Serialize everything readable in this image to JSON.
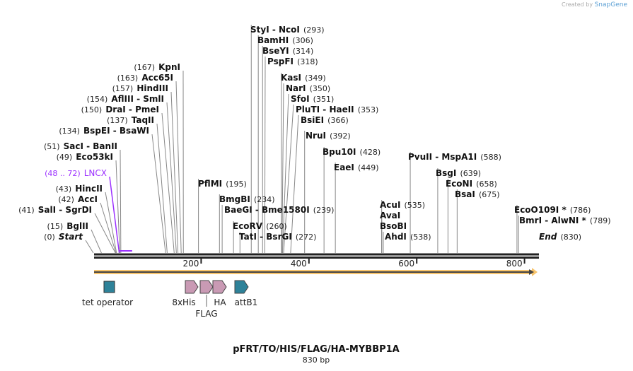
{
  "watermark": {
    "created_by": "Created by",
    "brand": "SnapGene"
  },
  "map": {
    "title": "pFRT/TO/HIS/FLAG/HA-MYBBP1A",
    "length_label": "830 bp",
    "length": 830,
    "ticks": [
      "200",
      "400",
      "600",
      "800"
    ],
    "tick_values": [
      200,
      400,
      600,
      800
    ]
  },
  "sites": [
    {
      "name": "Start",
      "pos": "(0)",
      "site": 0,
      "italic": true
    },
    {
      "name": "BglII",
      "pos": "(15)",
      "site": 15
    },
    {
      "name": "SalI  - SgrDI",
      "pos": "(41)",
      "site": 41
    },
    {
      "name": "AccI",
      "pos": "(42)",
      "site": 42
    },
    {
      "name": "HincII",
      "pos": "(43)",
      "site": 43
    },
    {
      "name": "LNCX",
      "pos": "(48 .. 72)",
      "site": 48,
      "color": "#9b30ff"
    },
    {
      "name": "Eco53kI",
      "pos": "(49)",
      "site": 49
    },
    {
      "name": "SacI  - BanII",
      "pos": "(51)",
      "site": 51
    },
    {
      "name": "BspEI  - BsaWI",
      "pos": "(134)",
      "site": 134
    },
    {
      "name": "TaqII",
      "pos": "(137)",
      "site": 137
    },
    {
      "name": "DraI  - PmeI",
      "pos": "(150)",
      "site": 150
    },
    {
      "name": "AflIII  - SmlI",
      "pos": "(154)",
      "site": 154
    },
    {
      "name": "HindIII",
      "pos": "(157)",
      "site": 157
    },
    {
      "name": "Acc65I",
      "pos": "(163)",
      "site": 163
    },
    {
      "name": "KpnI",
      "pos": "(167)",
      "site": 167
    },
    {
      "name": "PflMI",
      "pos": "(195)",
      "site": 195
    },
    {
      "name": "StyI  - NcoI",
      "pos": "(293)",
      "site": 293
    },
    {
      "name": "BamHI",
      "pos": "(306)",
      "site": 306
    },
    {
      "name": "BseYI",
      "pos": "(314)",
      "site": 314
    },
    {
      "name": "PspFI",
      "pos": "(318)",
      "site": 318
    },
    {
      "name": "KasI",
      "pos": "(349)",
      "site": 349
    },
    {
      "name": "NarI",
      "pos": "(350)",
      "site": 350
    },
    {
      "name": "SfoI",
      "pos": "(351)",
      "site": 351
    },
    {
      "name": "PluTI  - HaeII",
      "pos": "(353)",
      "site": 353
    },
    {
      "name": "BsiEI",
      "pos": "(366)",
      "site": 366
    },
    {
      "name": "NruI",
      "pos": "(392)",
      "site": 392
    },
    {
      "name": "Bpu10I",
      "pos": "(428)",
      "site": 428
    },
    {
      "name": "EaeI",
      "pos": "(449)",
      "site": 449
    },
    {
      "name": "BmgBI",
      "pos": "(234)",
      "site": 234
    },
    {
      "name": "BaeGI  - Bme1580I",
      "pos": "(239)",
      "site": 239
    },
    {
      "name": "EcoRV",
      "pos": "(260)",
      "site": 260
    },
    {
      "name": "TatI  - BsrGI",
      "pos": "(272)",
      "site": 272
    },
    {
      "name": "AcuI",
      "pos": "(535)",
      "site": 535
    },
    {
      "name": "AvaI",
      "pos": "",
      "site": 535
    },
    {
      "name": "BsoBI",
      "pos": "",
      "site": 535
    },
    {
      "name": "AhdI",
      "pos": "(538)",
      "site": 538
    },
    {
      "name": "PvuII  - MspA1I",
      "pos": "(588)",
      "site": 588
    },
    {
      "name": "BsgI",
      "pos": "(639)",
      "site": 639
    },
    {
      "name": "EcoNI",
      "pos": "(658)",
      "site": 658
    },
    {
      "name": "BsaI",
      "pos": "(675)",
      "site": 675
    },
    {
      "name": "EcoO109I *",
      "pos": "(786)",
      "site": 786
    },
    {
      "name": "BmrI  - AlwNI *",
      "pos": "(789)",
      "site": 789
    },
    {
      "name": "End",
      "pos": "(830)",
      "site": 830,
      "italic": true
    }
  ],
  "features": [
    {
      "name": "tet operator",
      "start": 15,
      "end": 34,
      "shape": "box",
      "color": "#2e8299"
    },
    {
      "name": "8xHis",
      "start": 170,
      "end": 194,
      "shape": "arrow",
      "color": "#c99ab4"
    },
    {
      "name": "FLAG",
      "start": 198,
      "end": 222,
      "shape": "arrow",
      "color": "#c99ab4"
    },
    {
      "name": "HA",
      "start": 222,
      "end": 249,
      "shape": "arrow",
      "color": "#c99ab4"
    },
    {
      "name": "attB1",
      "start": 262,
      "end": 288,
      "shape": "arrow",
      "color": "#2e8299"
    }
  ],
  "colors": {
    "orf": "#f7c46c",
    "backbone": "#222222",
    "lncx": "#9b30ff"
  }
}
